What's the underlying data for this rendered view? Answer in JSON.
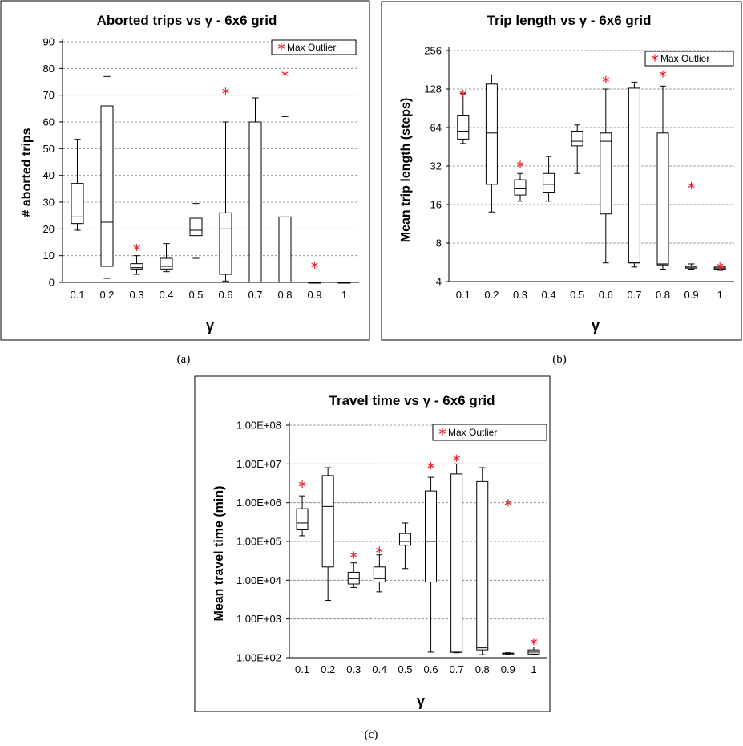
{
  "chart_data": [
    {
      "type": "box",
      "title": "Aborted trips vs γ - 6x6 grid",
      "ylabel": "# aborted trips",
      "xlabel": "γ",
      "caption": "(a)",
      "categories": [
        "0.1",
        "0.2",
        "0.3",
        "0.4",
        "0.5",
        "0.6",
        "0.7",
        "0.8",
        "0.9",
        "1"
      ],
      "scale": "linear",
      "ylim": [
        0,
        90
      ],
      "yticks": [
        "0",
        "10",
        "20",
        "30",
        "40",
        "50",
        "60",
        "70",
        "80",
        "90"
      ],
      "ytick_values": [
        0,
        10,
        20,
        30,
        40,
        50,
        60,
        70,
        80,
        90
      ],
      "grid": true,
      "legend": {
        "label": "Max Outlier",
        "marker": "*",
        "placement": "top-right"
      },
      "boxes": [
        {
          "min": 19.5,
          "q1": 22,
          "median": 24.5,
          "q3": 37,
          "max": 53.5
        },
        {
          "min": 1.5,
          "q1": 6,
          "median": 22.5,
          "q3": 66,
          "max": 77
        },
        {
          "min": 3,
          "q1": 5,
          "median": 5.5,
          "q3": 7,
          "max": 10
        },
        {
          "min": 4,
          "q1": 5,
          "median": 6,
          "q3": 9,
          "max": 14.5
        },
        {
          "min": 9,
          "q1": 17.5,
          "median": 19.5,
          "q3": 24,
          "max": 29.5
        },
        {
          "min": 0.5,
          "q1": 3,
          "median": 20,
          "q3": 26,
          "max": 60
        },
        {
          "min": 0,
          "q1": 0,
          "median": 0,
          "q3": 60,
          "max": 69
        },
        {
          "min": 0,
          "q1": 0,
          "median": 0,
          "q3": 24.5,
          "max": 62
        },
        {
          "min": 0,
          "q1": 0,
          "median": 0,
          "q3": 0,
          "max": 0
        },
        {
          "min": 0,
          "q1": 0,
          "median": 0,
          "q3": 0,
          "max": 0
        }
      ],
      "max_outliers": [
        null,
        null,
        13,
        null,
        null,
        71.5,
        null,
        78,
        6.5,
        null
      ],
      "marker_color": "#e8232b"
    },
    {
      "type": "box",
      "title": "Trip length vs γ - 6x6 grid",
      "ylabel": "Mean trip length (steps)",
      "xlabel": "γ",
      "caption": "(b)",
      "categories": [
        "0.1",
        "0.2",
        "0.3",
        "0.4",
        "0.5",
        "0.6",
        "0.7",
        "0.8",
        "0.9",
        "1"
      ],
      "scale": "log",
      "ylim": [
        4,
        256
      ],
      "yticks": [
        "4",
        "8",
        "16",
        "32",
        "64",
        "128",
        "256"
      ],
      "ytick_values": [
        4,
        8,
        16,
        32,
        64,
        128,
        256
      ],
      "grid": true,
      "legend": {
        "label": "Max Outlier",
        "marker": "*",
        "placement": "top-right"
      },
      "boxes": [
        {
          "min": 48,
          "q1": 52,
          "median": 60,
          "q3": 80,
          "max": 118
        },
        {
          "min": 14,
          "q1": 23,
          "median": 58,
          "q3": 140,
          "max": 165
        },
        {
          "min": 17,
          "q1": 19,
          "median": 21.5,
          "q3": 25,
          "max": 28
        },
        {
          "min": 17,
          "q1": 20,
          "median": 23,
          "q3": 28,
          "max": 38
        },
        {
          "min": 28,
          "q1": 46,
          "median": 50,
          "q3": 60,
          "max": 67
        },
        {
          "min": 5.6,
          "q1": 13.5,
          "median": 50,
          "q3": 58,
          "max": 128
        },
        {
          "min": 5.2,
          "q1": 5.6,
          "median": 5.6,
          "q3": 130,
          "max": 145
        },
        {
          "min": 5.0,
          "q1": 5.4,
          "median": 5.5,
          "q3": 58,
          "max": 135
        },
        {
          "min": 5.0,
          "q1": 5.1,
          "median": 5.2,
          "q3": 5.3,
          "max": 5.5
        },
        {
          "min": 4.9,
          "q1": 5.0,
          "median": 5.1,
          "q3": 5.2,
          "max": 5.3
        }
      ],
      "max_outliers": [
        118,
        null,
        33,
        null,
        null,
        152,
        null,
        168,
        22.5,
        5.3
      ],
      "marker_color": "#e8232b"
    },
    {
      "type": "box",
      "title": "Travel time vs γ - 6x6 grid",
      "ylabel": "Mean travel time (min)",
      "xlabel": "γ",
      "caption": "(c)",
      "categories": [
        "0.1",
        "0.2",
        "0.3",
        "0.4",
        "0.5",
        "0.6",
        "0.7",
        "0.8",
        "0.9",
        "1"
      ],
      "scale": "log",
      "ylim": [
        100,
        100000000
      ],
      "yticks": [
        "1.00E+02",
        "1.00E+03",
        "1.00E+04",
        "1.00E+05",
        "1.00E+06",
        "1.00E+07",
        "1.00E+08"
      ],
      "ytick_values": [
        100,
        1000,
        10000,
        100000,
        1000000,
        10000000,
        100000000
      ],
      "grid": true,
      "legend": {
        "label": "Max Outlier",
        "marker": "*",
        "placement": "top-right"
      },
      "boxes": [
        {
          "min": 140000,
          "q1": 200000,
          "median": 300000,
          "q3": 700000,
          "max": 1500000
        },
        {
          "min": 3000,
          "q1": 22000,
          "median": 800000,
          "q3": 5000000,
          "max": 8000000
        },
        {
          "min": 6500,
          "q1": 8000,
          "median": 11000,
          "q3": 16000,
          "max": 28000
        },
        {
          "min": 5000,
          "q1": 9000,
          "median": 11000,
          "q3": 22000,
          "max": 45000
        },
        {
          "min": 20000,
          "q1": 80000,
          "median": 100000,
          "q3": 160000,
          "max": 300000
        },
        {
          "min": 140,
          "q1": 9000,
          "median": 100000,
          "q3": 2000000,
          "max": 4500000
        },
        {
          "min": 135,
          "q1": 138,
          "median": 140,
          "q3": 5500000,
          "max": 10000000
        },
        {
          "min": 120,
          "q1": 160,
          "median": 180,
          "q3": 3500000,
          "max": 8000000
        },
        {
          "min": 125,
          "q1": 128,
          "median": 130,
          "q3": 132,
          "max": 135
        },
        {
          "min": 120,
          "q1": 125,
          "median": 140,
          "q3": 160,
          "max": 190
        }
      ],
      "max_outliers": [
        3000000,
        null,
        45000,
        60000,
        null,
        9000000,
        14000000,
        null,
        1000000,
        260
      ],
      "marker_color": "#e8232b"
    }
  ]
}
